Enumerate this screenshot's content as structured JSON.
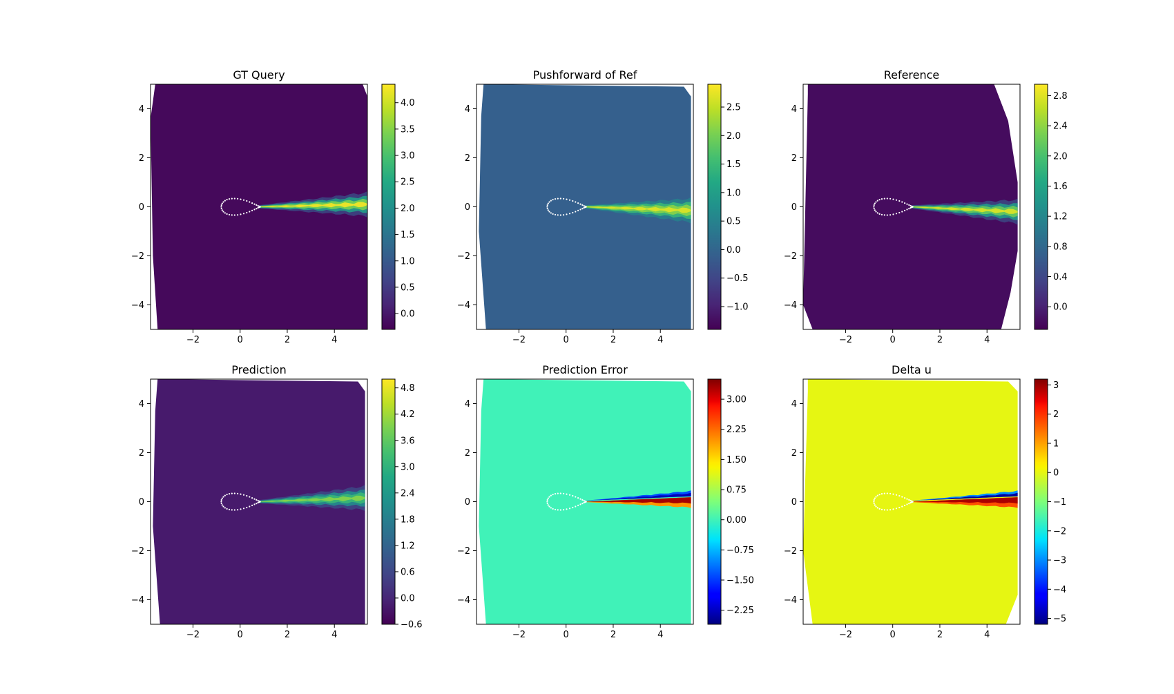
{
  "chart_data": [
    {
      "type": "heatmap",
      "title": "GT Query",
      "xlabel": "",
      "ylabel": "",
      "xlim": [
        -3.8,
        5.4
      ],
      "ylim": [
        -5,
        5
      ],
      "xticks": [
        -2,
        0,
        2,
        4
      ],
      "yticks": [
        4,
        2,
        0,
        -2,
        -4
      ],
      "colormap": "viridis",
      "colorbar": {
        "vmin": -0.3,
        "vmax": 4.35,
        "ticks": [
          4.0,
          3.5,
          3.0,
          2.5,
          2.0,
          1.5,
          1.0,
          0.5,
          0.0
        ],
        "tick_labels": [
          "4.0",
          "3.5",
          "3.0",
          "2.5",
          "2.0",
          "1.5",
          "1.0",
          "0.5",
          "0.0"
        ]
      },
      "background_value": -0.2,
      "domain_outline": [
        [
          -3.6,
          5
        ],
        [
          5.2,
          5
        ],
        [
          5.4,
          4.5
        ],
        [
          5.4,
          -5
        ],
        [
          -3.5,
          -5
        ],
        [
          -3.7,
          -2
        ],
        [
          -3.8,
          3.6
        ]
      ],
      "wake": {
        "x_start": 0.8,
        "x_end": 5.4,
        "center_y": [
          0.0,
          0.05,
          0.1
        ],
        "peak_value": 4.3
      },
      "airfoil_outline": "white dotted teardrop, x from -0.8 to 0.85, y from -0.3 to 0.3"
    },
    {
      "type": "heatmap",
      "title": "Pushforward of Ref",
      "xlabel": "",
      "ylabel": "",
      "xlim": [
        -3.8,
        5.4
      ],
      "ylim": [
        -5,
        5
      ],
      "xticks": [
        -2,
        0,
        2,
        4
      ],
      "yticks": [
        4,
        2,
        0,
        -2,
        -4
      ],
      "colormap": "viridis",
      "colorbar": {
        "vmin": -1.4,
        "vmax": 2.9,
        "ticks": [
          2.5,
          2.0,
          1.5,
          1.0,
          0.5,
          0.0,
          -0.5,
          -1.0
        ],
        "tick_labels": [
          "2.5",
          "2.0",
          "1.5",
          "1.0",
          "0.5",
          "0.0",
          "−0.5",
          "−1.0"
        ]
      },
      "background_value": -0.1,
      "domain_outline": [
        [
          -3.5,
          5
        ],
        [
          5.0,
          4.9
        ],
        [
          5.3,
          4.5
        ],
        [
          5.3,
          -5
        ],
        [
          -3.4,
          -5
        ],
        [
          -3.7,
          -1
        ],
        [
          -3.6,
          3.7
        ]
      ],
      "wake": {
        "x_start": 0.8,
        "x_end": 5.3,
        "center_y": [
          0.0,
          -0.1,
          -0.15
        ],
        "peak_value": 2.7
      },
      "airfoil_outline": "white dotted teardrop, x from -0.8 to 0.85, y from -0.3 to 0.3"
    },
    {
      "type": "heatmap",
      "title": "Reference",
      "xlabel": "",
      "ylabel": "",
      "xlim": [
        -3.8,
        5.4
      ],
      "ylim": [
        -5,
        5
      ],
      "xticks": [
        -2,
        0,
        2,
        4
      ],
      "yticks": [
        4,
        2,
        0,
        -2,
        -4
      ],
      "colormap": "viridis",
      "colorbar": {
        "vmin": -0.3,
        "vmax": 2.95,
        "ticks": [
          2.8,
          2.4,
          2.0,
          1.6,
          1.2,
          0.8,
          0.4,
          0.0
        ],
        "tick_labels": [
          "2.8",
          "2.4",
          "2.0",
          "1.6",
          "1.2",
          "0.8",
          "0.4",
          "0.0"
        ]
      },
      "background_value": -0.2,
      "domain_outline": [
        [
          -3.6,
          5
        ],
        [
          4.3,
          5
        ],
        [
          4.9,
          3.5
        ],
        [
          5.3,
          1.0
        ],
        [
          5.3,
          -1.8
        ],
        [
          5.0,
          -3.5
        ],
        [
          4.6,
          -5
        ],
        [
          -3.4,
          -5
        ],
        [
          -3.8,
          -4.0
        ],
        [
          -3.6,
          4.6
        ]
      ],
      "wake": {
        "x_start": 0.8,
        "x_end": 5.3,
        "center_y": [
          0.0,
          -0.1,
          -0.2
        ],
        "peak_value": 2.8
      },
      "airfoil_outline": "white dotted teardrop, x from -0.8 to 0.85, y from -0.3 to 0.3"
    },
    {
      "type": "heatmap",
      "title": "Prediction",
      "xlabel": "",
      "ylabel": "",
      "xlim": [
        -3.8,
        5.4
      ],
      "ylim": [
        -5,
        5
      ],
      "xticks": [
        -2,
        0,
        2,
        4
      ],
      "yticks": [
        4,
        2,
        0,
        -2,
        -4
      ],
      "colormap": "viridis",
      "colorbar": {
        "vmin": -0.6,
        "vmax": 5.0,
        "ticks": [
          4.8,
          4.2,
          3.6,
          3.0,
          2.4,
          1.8,
          1.2,
          0.6,
          0.0,
          -0.6
        ],
        "tick_labels": [
          "4.8",
          "4.2",
          "3.6",
          "3.0",
          "2.4",
          "1.8",
          "1.2",
          "0.6",
          "0.0",
          "−0.6"
        ]
      },
      "background_value": -0.2,
      "domain_outline": [
        [
          -3.5,
          5
        ],
        [
          5.0,
          4.9
        ],
        [
          5.3,
          4.5
        ],
        [
          5.3,
          -5
        ],
        [
          -3.4,
          -5
        ],
        [
          -3.7,
          -1
        ],
        [
          -3.6,
          3.7
        ]
      ],
      "wake": {
        "x_start": 0.8,
        "x_end": 5.3,
        "center_y": [
          0.0,
          0.05,
          0.15
        ],
        "peak_value": 4.0
      },
      "airfoil_outline": "white dotted teardrop, x from -0.8 to 0.85, y from -0.3 to 0.3"
    },
    {
      "type": "heatmap",
      "title": "Prediction Error",
      "xlabel": "",
      "ylabel": "",
      "xlim": [
        -3.8,
        5.4
      ],
      "ylim": [
        -5,
        5
      ],
      "xticks": [
        -2,
        0,
        2,
        4
      ],
      "yticks": [
        4,
        2,
        0,
        -2,
        -4
      ],
      "colormap": "jet",
      "colorbar": {
        "vmin": -2.6,
        "vmax": 3.5,
        "ticks": [
          3.0,
          2.25,
          1.5,
          0.75,
          0.0,
          -0.75,
          -1.5,
          -2.25
        ],
        "tick_labels": [
          "3.00",
          "2.25",
          "1.50",
          "0.75",
          "0.00",
          "−0.75",
          "−1.50",
          "−2.25"
        ]
      },
      "background_value": 0.0,
      "domain_outline": [
        [
          -3.5,
          5
        ],
        [
          5.0,
          4.9
        ],
        [
          5.3,
          4.5
        ],
        [
          5.3,
          -5
        ],
        [
          -3.4,
          -5
        ],
        [
          -3.7,
          -1
        ],
        [
          -3.6,
          3.7
        ]
      ],
      "wake_dipole": {
        "x_start": 0.8,
        "x_end": 5.3,
        "upper_value": -2.3,
        "lower_value": 3.3
      },
      "airfoil_outline": "white dotted teardrop, x from -0.8 to 0.85, y from -0.3 to 0.3"
    },
    {
      "type": "heatmap",
      "title": "Delta u",
      "xlabel": "",
      "ylabel": "",
      "xlim": [
        -3.8,
        5.4
      ],
      "ylim": [
        -5,
        5
      ],
      "xticks": [
        -2,
        0,
        2,
        4
      ],
      "yticks": [
        4,
        2,
        0,
        -2,
        -4
      ],
      "colormap": "jet",
      "colorbar": {
        "vmin": -5.2,
        "vmax": 3.2,
        "ticks": [
          3,
          2,
          1,
          0,
          -1,
          -2,
          -3,
          -4,
          -5
        ],
        "tick_labels": [
          "3",
          "2",
          "1",
          "0",
          "−1",
          "−2",
          "−3",
          "−4",
          "−5"
        ]
      },
      "background_value": 0.0,
      "domain_outline": [
        [
          -3.6,
          5
        ],
        [
          4.9,
          4.9
        ],
        [
          5.3,
          4.5
        ],
        [
          5.3,
          -3.8
        ],
        [
          4.8,
          -5
        ],
        [
          -3.4,
          -5
        ],
        [
          -3.8,
          -2
        ],
        [
          -3.6,
          4.5
        ]
      ],
      "wake_dipole": {
        "x_start": 0.8,
        "x_end": 5.3,
        "upper_value": -5.0,
        "lower_value": 2.9
      },
      "airfoil_outline": "white dotted teardrop, x from -0.8 to 0.85, y from -0.3 to 0.3"
    }
  ]
}
